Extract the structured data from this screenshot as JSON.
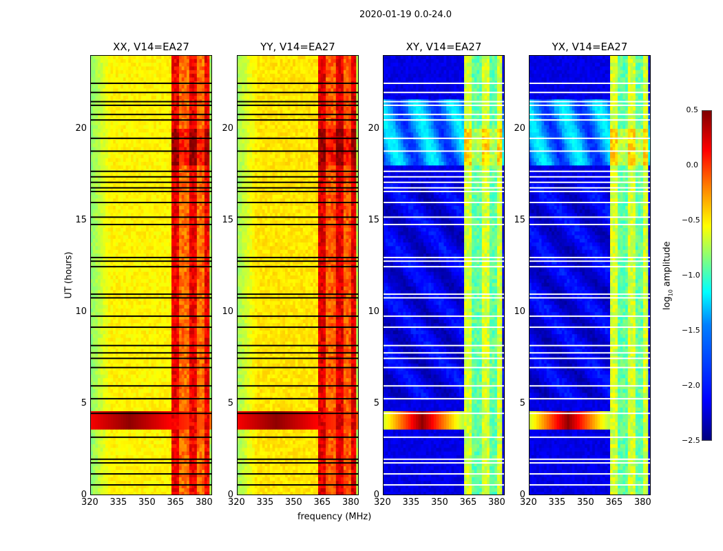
{
  "chart_data": {
    "type": "heatmap",
    "title": "2020-01-19 0.0-24.0",
    "xlabel": "frequency (MHz)",
    "ylabel": "UT (hours)",
    "xlim": [
      320,
      384
    ],
    "ylim": [
      0,
      24
    ],
    "xticks": [
      "320",
      "335",
      "350",
      "365",
      "380"
    ],
    "yticks": [
      "0",
      "5",
      "10",
      "15",
      "20"
    ],
    "colorbar": {
      "label_main": "log",
      "label_sub": "10",
      "label_rest": " amplitude",
      "range": [
        -2.5,
        0.5
      ],
      "ticks": [
        "0.5",
        "0.0",
        "−0.5",
        "−1.0",
        "−1.5",
        "−2.0",
        "−2.5"
      ],
      "colormap": "jet"
    },
    "panels": [
      {
        "title": "XX, V14=EA27",
        "kind": "parallel",
        "base": -0.6,
        "band_level": 0.05,
        "flag_color": "#000000"
      },
      {
        "title": "YY, V14=EA27",
        "kind": "parallel",
        "base": -0.55,
        "band_level": 0.1,
        "flag_color": "#000000"
      },
      {
        "title": "XY, V14=EA27",
        "kind": "cross",
        "base": -2.2,
        "band_level": -0.85,
        "flag_color": "#ffffff"
      },
      {
        "title": "YX, V14=EA27",
        "kind": "cross",
        "base": -2.2,
        "band_level": -0.85,
        "flag_color": "#ffffff"
      }
    ],
    "band_mhz": [
      362,
      382
    ],
    "rfi_event_hours": [
      3.6,
      4.5
    ],
    "bright_hours": [
      17.8,
      21.5
    ],
    "flagged_hours": [
      22.5,
      22.0,
      21.5,
      21.3,
      20.8,
      20.5,
      19.5,
      18.8,
      17.7,
      17.4,
      17.1,
      16.8,
      16.6,
      16.0,
      15.2,
      14.8,
      13.0,
      12.8,
      12.5,
      11.0,
      10.8,
      9.8,
      9.2,
      8.2,
      7.8,
      7.5,
      7.0,
      6.0,
      5.3,
      4.5,
      3.2,
      2.0,
      1.8,
      1.2,
      0.6
    ]
  }
}
